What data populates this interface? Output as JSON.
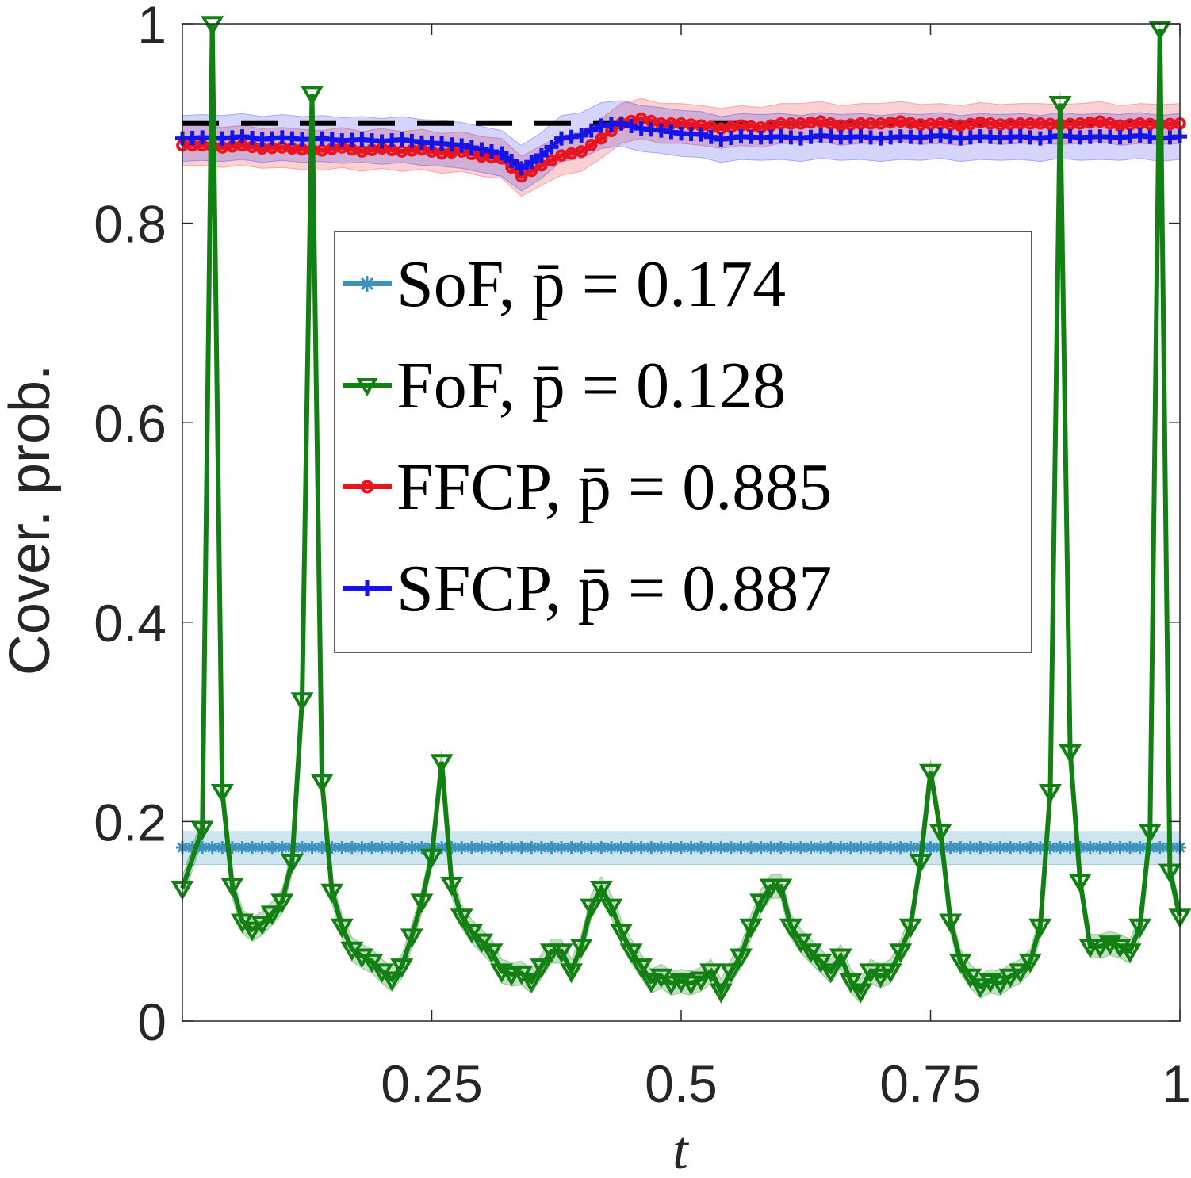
{
  "chart_data": {
    "type": "line",
    "title": "",
    "xlabel": "t",
    "ylabel": "Cover. prob.",
    "xlim": [
      0,
      1
    ],
    "ylim": [
      0,
      1
    ],
    "xticks": [
      0.25,
      0.5,
      0.75,
      1
    ],
    "xtick_labels": [
      "0.25",
      "0.5",
      "0.75",
      "1"
    ],
    "yticks": [
      0,
      0.2,
      0.4,
      0.6,
      0.8,
      1
    ],
    "ytick_labels": [
      "0",
      "0.2",
      "0.4",
      "0.6",
      "0.8",
      "1"
    ],
    "reference_line": {
      "y": 0.9,
      "style": "dashed",
      "color": "#000000"
    },
    "legend_position": "center",
    "series": [
      {
        "name": "SoF",
        "legend_label": "SoF, p̄ = 0.174",
        "mean_label": "0.174",
        "color": "#3c93bd",
        "marker": "asterisk",
        "x": [
          0,
          1
        ],
        "values": [
          0.174,
          0.174
        ],
        "band": [
          0.157,
          0.19
        ]
      },
      {
        "name": "FoF",
        "legend_label": "FoF, p̄ = 0.128",
        "mean_label": "0.128",
        "color": "#138013",
        "marker": "triangle-down",
        "x": [
          0,
          0.02,
          0.03,
          0.04,
          0.05,
          0.06,
          0.07,
          0.08,
          0.09,
          0.1,
          0.11,
          0.12,
          0.13,
          0.14,
          0.15,
          0.16,
          0.17,
          0.18,
          0.19,
          0.2,
          0.21,
          0.22,
          0.23,
          0.24,
          0.25,
          0.26,
          0.27,
          0.28,
          0.29,
          0.3,
          0.31,
          0.32,
          0.33,
          0.34,
          0.35,
          0.36,
          0.37,
          0.38,
          0.39,
          0.4,
          0.41,
          0.42,
          0.43,
          0.44,
          0.45,
          0.46,
          0.47,
          0.48,
          0.49,
          0.5,
          0.51,
          0.52,
          0.53,
          0.54,
          0.55,
          0.56,
          0.57,
          0.58,
          0.59,
          0.6,
          0.61,
          0.62,
          0.63,
          0.64,
          0.65,
          0.66,
          0.67,
          0.68,
          0.69,
          0.7,
          0.71,
          0.72,
          0.73,
          0.74,
          0.75,
          0.76,
          0.77,
          0.78,
          0.79,
          0.8,
          0.81,
          0.82,
          0.83,
          0.84,
          0.85,
          0.86,
          0.87,
          0.88,
          0.89,
          0.9,
          0.91,
          0.92,
          0.93,
          0.94,
          0.95,
          0.96,
          0.97,
          0.98,
          0.99,
          1.0
        ],
        "values": [
          0.133,
          0.193,
          1.0,
          0.23,
          0.136,
          0.1,
          0.092,
          0.098,
          0.108,
          0.12,
          0.16,
          0.322,
          0.93,
          0.24,
          0.13,
          0.095,
          0.072,
          0.065,
          0.06,
          0.05,
          0.042,
          0.055,
          0.085,
          0.12,
          0.165,
          0.26,
          0.137,
          0.105,
          0.09,
          0.08,
          0.07,
          0.05,
          0.047,
          0.048,
          0.04,
          0.055,
          0.07,
          0.07,
          0.05,
          0.075,
          0.115,
          0.133,
          0.115,
          0.09,
          0.07,
          0.055,
          0.04,
          0.045,
          0.038,
          0.04,
          0.038,
          0.042,
          0.05,
          0.03,
          0.05,
          0.065,
          0.095,
          0.12,
          0.135,
          0.135,
          0.095,
          0.08,
          0.07,
          0.06,
          0.05,
          0.065,
          0.04,
          0.03,
          0.05,
          0.045,
          0.05,
          0.07,
          0.095,
          0.16,
          0.25,
          0.19,
          0.1,
          0.06,
          0.045,
          0.035,
          0.04,
          0.038,
          0.045,
          0.05,
          0.06,
          0.095,
          0.23,
          0.92,
          0.27,
          0.14,
          0.075,
          0.075,
          0.078,
          0.075,
          0.07,
          0.095,
          0.19,
          0.995,
          0.15,
          0.105
        ]
      },
      {
        "name": "FFCP",
        "legend_label": "FFCP, p̄ = 0.885",
        "mean_label": "0.885",
        "color": "#e8141f",
        "marker": "circle",
        "x": [
          0,
          0.02,
          0.04,
          0.06,
          0.08,
          0.1,
          0.12,
          0.14,
          0.16,
          0.18,
          0.2,
          0.22,
          0.24,
          0.26,
          0.28,
          0.3,
          0.32,
          0.34,
          0.36,
          0.38,
          0.4,
          0.42,
          0.44,
          0.46,
          0.48,
          0.5,
          0.52,
          0.54,
          0.56,
          0.58,
          0.6,
          0.62,
          0.64,
          0.66,
          0.68,
          0.7,
          0.72,
          0.74,
          0.76,
          0.78,
          0.8,
          0.82,
          0.84,
          0.86,
          0.88,
          0.9,
          0.92,
          0.94,
          0.96,
          0.98,
          1.0
        ],
        "values": [
          0.878,
          0.878,
          0.876,
          0.878,
          0.875,
          0.876,
          0.874,
          0.873,
          0.876,
          0.872,
          0.875,
          0.872,
          0.874,
          0.87,
          0.872,
          0.867,
          0.865,
          0.847,
          0.858,
          0.868,
          0.872,
          0.885,
          0.9,
          0.905,
          0.9,
          0.9,
          0.898,
          0.895,
          0.898,
          0.896,
          0.9,
          0.9,
          0.902,
          0.898,
          0.9,
          0.9,
          0.902,
          0.899,
          0.9,
          0.898,
          0.901,
          0.899,
          0.9,
          0.9,
          0.899,
          0.9,
          0.902,
          0.898,
          0.9,
          0.899,
          0.9
        ],
        "band_halfwidth": 0.02
      },
      {
        "name": "SFCP",
        "legend_label": "SFCP, p̄ = 0.887",
        "mean_label": "0.887",
        "color": "#1414e8",
        "marker": "plus",
        "x": [
          0,
          0.02,
          0.04,
          0.06,
          0.08,
          0.1,
          0.12,
          0.14,
          0.16,
          0.18,
          0.2,
          0.22,
          0.24,
          0.26,
          0.28,
          0.3,
          0.32,
          0.34,
          0.36,
          0.38,
          0.4,
          0.42,
          0.44,
          0.46,
          0.48,
          0.5,
          0.52,
          0.54,
          0.56,
          0.58,
          0.6,
          0.62,
          0.64,
          0.66,
          0.68,
          0.7,
          0.72,
          0.74,
          0.76,
          0.78,
          0.8,
          0.82,
          0.84,
          0.86,
          0.88,
          0.9,
          0.92,
          0.94,
          0.96,
          0.98,
          1.0
        ],
        "values": [
          0.885,
          0.886,
          0.885,
          0.887,
          0.884,
          0.886,
          0.884,
          0.885,
          0.883,
          0.884,
          0.882,
          0.884,
          0.881,
          0.88,
          0.878,
          0.874,
          0.87,
          0.855,
          0.868,
          0.885,
          0.888,
          0.898,
          0.9,
          0.895,
          0.893,
          0.89,
          0.889,
          0.884,
          0.887,
          0.886,
          0.887,
          0.885,
          0.888,
          0.886,
          0.887,
          0.885,
          0.887,
          0.886,
          0.888,
          0.885,
          0.887,
          0.886,
          0.887,
          0.885,
          0.888,
          0.886,
          0.887,
          0.886,
          0.888,
          0.885,
          0.887
        ],
        "band_halfwidth": 0.023
      }
    ]
  }
}
